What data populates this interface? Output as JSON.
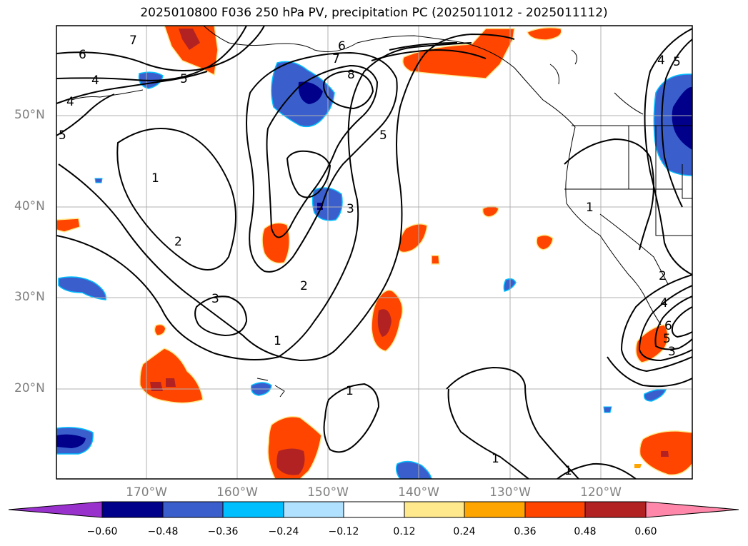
{
  "title": "2025010800 F036 250 hPa PV, precipitation PC (2025011012 - 2025011112)",
  "latitude_labels": [
    "50°N",
    "40°N",
    "30°N",
    "20°N"
  ],
  "longitude_labels": [
    "170°W",
    "160°W",
    "150°W",
    "140°W",
    "130°W",
    "120°W"
  ],
  "colorbar": {
    "tick_labels": [
      "−0.60",
      "−0.48",
      "−0.36",
      "−0.24",
      "−0.12",
      "0.12",
      "0.24",
      "0.36",
      "0.48",
      "0.60"
    ],
    "colors": [
      "#9932CC",
      "#00008B",
      "#3A5FCD",
      "#00BFFF",
      "#B0E2FF",
      "#FFFFFF",
      "#FFE98C",
      "#FFA500",
      "#FF4500",
      "#B22222",
      "#FF88AA"
    ]
  },
  "contour_labels": [
    "7",
    "6",
    "5",
    "4",
    "4",
    "5",
    "6",
    "7",
    "8",
    "5",
    "1",
    "2",
    "3",
    "3",
    "2",
    "1",
    "1",
    "1",
    "1",
    "1",
    "2",
    "4",
    "6",
    "5",
    "3",
    "4",
    "5"
  ],
  "colors": {
    "contour": "#000000",
    "grid": "#b0b0b0",
    "coast": "#000000"
  }
}
